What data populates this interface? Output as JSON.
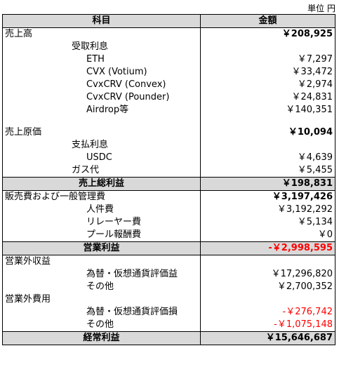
{
  "unit_label": "単位 円",
  "headers": {
    "item": "科目",
    "amount": "金額"
  },
  "rows": [
    {
      "label": "売上高",
      "value": "￥208,925",
      "level": 0,
      "bold_value": true
    },
    {
      "label": "受取利息",
      "value": "",
      "level": 1
    },
    {
      "label": "ETH",
      "value": "￥7,297",
      "level": 2
    },
    {
      "label": "CVX (Votium)",
      "value": "￥33,472",
      "level": 2
    },
    {
      "label": "CvxCRV (Convex)",
      "value": "￥2,974",
      "level": 2
    },
    {
      "label": "CvxCRV (Pounder)",
      "value": "￥24,831",
      "level": 2
    },
    {
      "label": "Airdrop等",
      "value": "￥140,351",
      "level": 2
    },
    {
      "label": "",
      "value": "",
      "level": 0,
      "blank": true
    },
    {
      "label": "売上原価",
      "value": "￥10,094",
      "level": 0,
      "bold_value": true
    },
    {
      "label": "支払利息",
      "value": "",
      "level": 1
    },
    {
      "label": "USDC",
      "value": "￥4,639",
      "level": 2
    },
    {
      "label": "ガス代",
      "value": "￥5,455",
      "level": 1
    },
    {
      "label": "売上総利益",
      "value": "￥198,831",
      "total": true
    },
    {
      "label": "販売費および一般管理費",
      "value": "￥3,197,426",
      "level": 0,
      "bold_value": true
    },
    {
      "label": "人件費",
      "value": "￥3,192,292",
      "level": 2
    },
    {
      "label": "リレーヤー費",
      "value": "￥5,134",
      "level": 2
    },
    {
      "label": "プール報酬費",
      "value": "￥0",
      "level": 2
    },
    {
      "label": "営業利益",
      "value": "-￥2,998,595",
      "total": true,
      "red": true
    },
    {
      "label": "営業外収益",
      "value": "",
      "level": 0
    },
    {
      "label": "為替・仮想通貨評価益",
      "value": "￥17,296,820",
      "level": 2
    },
    {
      "label": "その他",
      "value": "￥2,700,352",
      "level": 2
    },
    {
      "label": "営業外費用",
      "value": "",
      "level": 0
    },
    {
      "label": "為替・仮想通貨評価損",
      "value": "-￥276,742",
      "level": 2,
      "red": true
    },
    {
      "label": "その他",
      "value": "-￥1,075,148",
      "level": 2,
      "red": true
    },
    {
      "label": "経常利益",
      "value": "￥15,646,687",
      "total": true
    }
  ]
}
